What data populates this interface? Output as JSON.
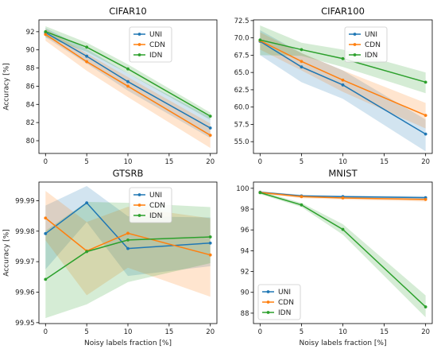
{
  "colors": {
    "UNI": "#1f77b4",
    "CDN": "#ff7f0e",
    "IDN": "#2ca02c"
  },
  "chart_data": [
    {
      "type": "line",
      "title": "CIFAR10",
      "xlabel": "",
      "ylabel": "Accuracy [%]",
      "x": [
        0,
        5,
        10,
        20
      ],
      "xlim": [
        -0.8,
        20.8
      ],
      "ylim": [
        78.6,
        93.3
      ],
      "xticks": [
        "0",
        "5",
        "10",
        "15",
        "20"
      ],
      "yticks": [
        "80",
        "82",
        "84",
        "86",
        "88",
        "90",
        "92"
      ],
      "legend": "top-right",
      "series": [
        {
          "name": "UNI",
          "values": [
            91.9,
            89.3,
            86.5,
            81.4
          ],
          "lower": [
            91.4,
            88.5,
            85.5,
            80.3
          ],
          "upper": [
            92.4,
            90.1,
            87.4,
            82.6
          ]
        },
        {
          "name": "CDN",
          "values": [
            91.7,
            88.7,
            86.0,
            80.6
          ],
          "lower": [
            91.0,
            87.7,
            84.8,
            79.2
          ],
          "upper": [
            92.3,
            89.6,
            87.0,
            81.9
          ]
        },
        {
          "name": "IDN",
          "values": [
            92.0,
            90.3,
            87.9,
            82.7
          ],
          "lower": [
            91.4,
            89.8,
            87.4,
            82.3
          ],
          "upper": [
            92.6,
            90.8,
            88.4,
            83.1
          ]
        }
      ]
    },
    {
      "type": "line",
      "title": "CIFAR100",
      "xlabel": "",
      "ylabel": "",
      "x": [
        0,
        5,
        10,
        20
      ],
      "xlim": [
        -0.8,
        20.8
      ],
      "ylim": [
        53.3,
        72.6
      ],
      "xticks": [
        "0",
        "5",
        "10",
        "15",
        "20"
      ],
      "yticks": [
        "55.0",
        "57.5",
        "60.0",
        "62.5",
        "65.0",
        "67.5",
        "70.0",
        "72.5"
      ],
      "legend": "top-right",
      "series": [
        {
          "name": "UNI",
          "values": [
            69.5,
            65.8,
            63.2,
            56.1
          ],
          "lower": [
            67.5,
            63.6,
            61.2,
            53.6
          ],
          "upper": [
            71.1,
            67.8,
            65.3,
            58.2
          ]
        },
        {
          "name": "CDN",
          "values": [
            69.6,
            66.6,
            63.9,
            58.8
          ],
          "lower": [
            68.3,
            65.3,
            62.2,
            56.9
          ],
          "upper": [
            70.8,
            67.8,
            65.3,
            60.6
          ]
        },
        {
          "name": "IDN",
          "values": [
            69.7,
            68.3,
            67.0,
            63.6
          ],
          "lower": [
            67.5,
            67.4,
            65.8,
            62.0
          ],
          "upper": [
            71.8,
            69.3,
            68.3,
            65.0
          ]
        }
      ]
    },
    {
      "type": "line",
      "title": "GTSRB",
      "xlabel": "Noisy labels fraction [%]",
      "ylabel": "Accuracy [%]",
      "x": [
        0,
        5,
        10,
        20
      ],
      "xlim": [
        -0.8,
        20.8
      ],
      "ylim": [
        99.9497,
        99.9961
      ],
      "xticks": [
        "0",
        "5",
        "10",
        "15",
        "20"
      ],
      "yticks": [
        "99.95",
        "99.96",
        "99.97",
        "99.98",
        "99.99"
      ],
      "legend": "top-right",
      "series": [
        {
          "name": "UNI",
          "values": [
            99.9792,
            99.9893,
            99.9743,
            99.9761
          ],
          "lower": [
            99.9675,
            99.983,
            99.9653,
            99.9685
          ],
          "upper": [
            99.9884,
            99.9948,
            99.9849,
            99.9845
          ]
        },
        {
          "name": "CDN",
          "values": [
            99.9843,
            99.9735,
            99.9793,
            99.9722
          ],
          "lower": [
            99.977,
            99.959,
            99.968,
            99.9585
          ],
          "upper": [
            99.9932,
            99.983,
            99.988,
            99.9842
          ]
        },
        {
          "name": "IDN",
          "values": [
            99.9642,
            99.9733,
            99.9771,
            99.9781
          ],
          "lower": [
            99.9515,
            99.956,
            99.9633,
            99.9695
          ],
          "upper": [
            99.9801,
            99.9896,
            99.9893,
            99.9879
          ]
        }
      ]
    },
    {
      "type": "line",
      "title": "MNIST",
      "xlabel": "Noisy labels fraction [%]",
      "ylabel": "",
      "x": [
        0,
        5,
        10,
        20
      ],
      "xlim": [
        -0.8,
        20.8
      ],
      "ylim": [
        87.0,
        100.6
      ],
      "xticks": [
        "0",
        "5",
        "10",
        "15",
        "20"
      ],
      "yticks": [
        "88",
        "90",
        "92",
        "94",
        "96",
        "98",
        "100"
      ],
      "legend": "lower-left",
      "series": [
        {
          "name": "UNI",
          "values": [
            99.62,
            99.27,
            99.2,
            99.1
          ],
          "lower": [
            99.52,
            99.17,
            99.1,
            98.95
          ],
          "upper": [
            99.72,
            99.37,
            99.3,
            99.25
          ]
        },
        {
          "name": "CDN",
          "values": [
            99.6,
            99.2,
            99.07,
            98.93
          ],
          "lower": [
            99.48,
            99.05,
            98.92,
            98.73
          ],
          "upper": [
            99.72,
            99.35,
            99.22,
            99.13
          ]
        },
        {
          "name": "IDN",
          "values": [
            99.58,
            98.4,
            96.05,
            88.6
          ],
          "lower": [
            99.43,
            98.2,
            95.55,
            87.6
          ],
          "upper": [
            99.73,
            98.6,
            96.55,
            89.7
          ]
        }
      ]
    }
  ]
}
